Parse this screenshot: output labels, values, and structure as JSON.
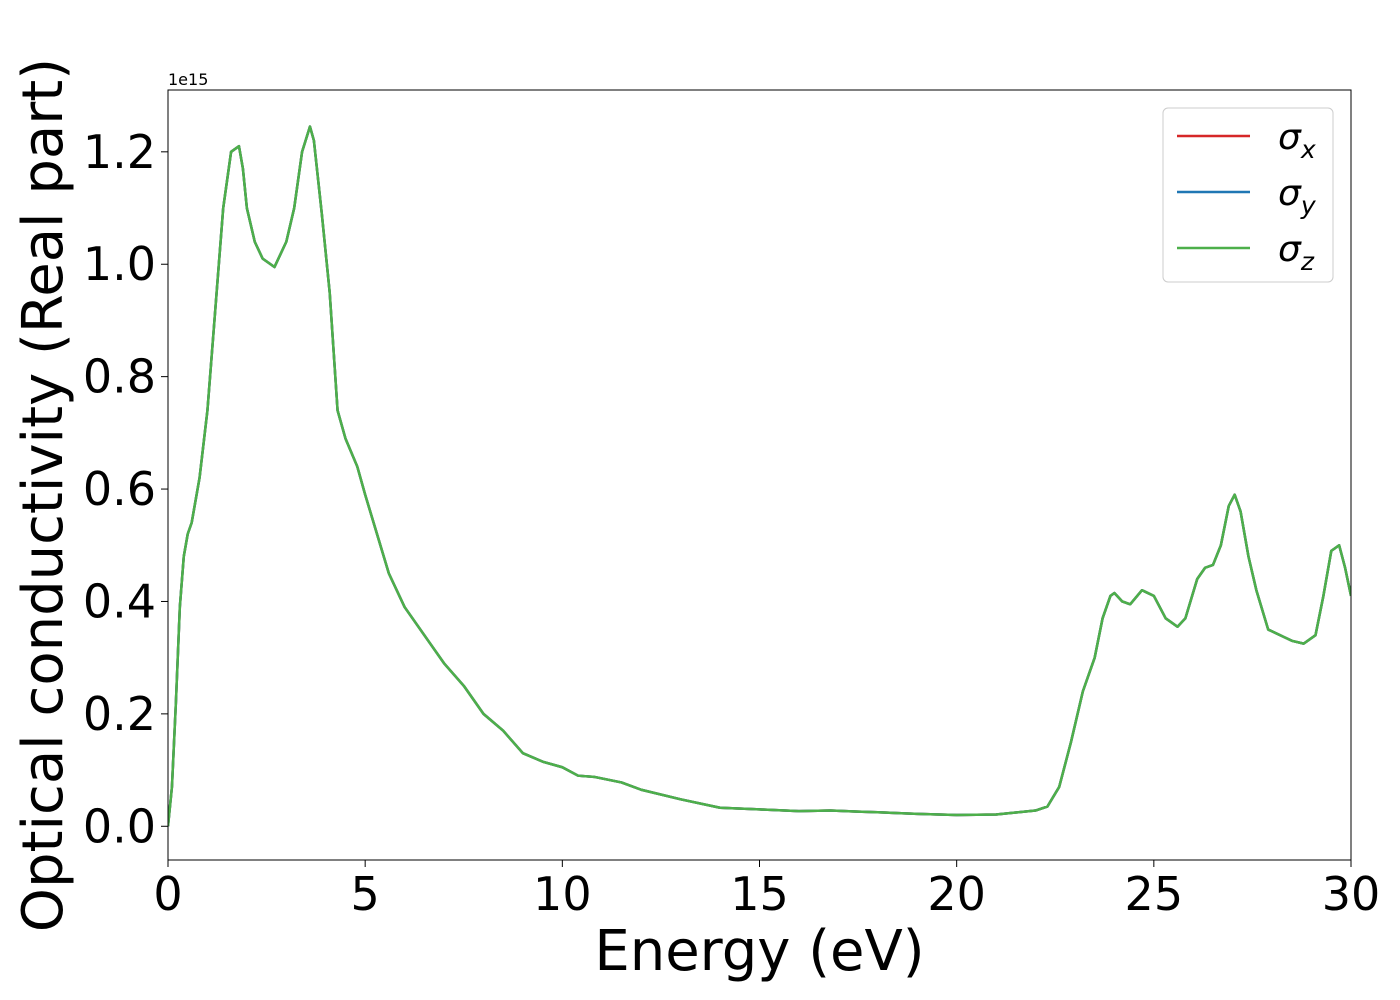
{
  "chart_data": {
    "type": "line",
    "xlabel": "Energy (eV)",
    "ylabel": "Optical conductivity (Real part)",
    "offset_text": "1e15",
    "xlim": [
      0,
      30
    ],
    "ylim": [
      -0.06,
      1.31
    ],
    "xticks": [
      0,
      5,
      10,
      15,
      20,
      25,
      30
    ],
    "xtick_labels": [
      "0",
      "5",
      "10",
      "15",
      "20",
      "25",
      "30"
    ],
    "yticks": [
      0.0,
      0.2,
      0.4,
      0.6,
      0.8,
      1.0,
      1.2
    ],
    "ytick_labels": [
      "0.0",
      "0.2",
      "0.4",
      "0.6",
      "0.8",
      "1.0",
      "1.2"
    ],
    "y_scale_note": "values in units of 1e15",
    "grid": false,
    "legend_position": "top-right",
    "x": [
      0,
      0.1,
      0.2,
      0.3,
      0.4,
      0.5,
      0.6,
      0.8,
      1.0,
      1.2,
      1.4,
      1.6,
      1.8,
      1.9,
      2.0,
      2.2,
      2.4,
      2.7,
      3.0,
      3.2,
      3.4,
      3.6,
      3.7,
      3.9,
      4.1,
      4.3,
      4.5,
      4.8,
      5.0,
      5.3,
      5.6,
      6.0,
      6.3,
      6.6,
      7.0,
      7.5,
      8.0,
      8.5,
      9.0,
      9.5,
      10.0,
      10.4,
      10.8,
      11.5,
      12.0,
      13.0,
      14.0,
      15.0,
      16.0,
      16.8,
      17.5,
      18.0,
      19.0,
      20.0,
      21.0,
      22.0,
      22.3,
      22.6,
      22.9,
      23.2,
      23.5,
      23.7,
      23.9,
      24.0,
      24.2,
      24.4,
      24.7,
      25.0,
      25.3,
      25.6,
      25.8,
      26.1,
      26.3,
      26.5,
      26.7,
      26.9,
      27.05,
      27.2,
      27.4,
      27.6,
      27.9,
      28.2,
      28.5,
      28.8,
      29.1,
      29.3,
      29.5,
      29.7,
      29.85,
      30.0
    ],
    "series": [
      {
        "name": "σx",
        "color": "#d62728",
        "values": [
          0.0,
          0.07,
          0.22,
          0.39,
          0.48,
          0.52,
          0.54,
          0.62,
          0.74,
          0.92,
          1.1,
          1.2,
          1.21,
          1.17,
          1.1,
          1.04,
          1.01,
          0.995,
          1.04,
          1.1,
          1.2,
          1.245,
          1.22,
          1.09,
          0.95,
          0.74,
          0.69,
          0.64,
          0.59,
          0.52,
          0.45,
          0.39,
          0.36,
          0.33,
          0.29,
          0.25,
          0.2,
          0.17,
          0.13,
          0.115,
          0.105,
          0.09,
          0.088,
          0.078,
          0.065,
          0.048,
          0.033,
          0.03,
          0.027,
          0.028,
          0.026,
          0.025,
          0.022,
          0.02,
          0.021,
          0.028,
          0.035,
          0.07,
          0.15,
          0.24,
          0.3,
          0.37,
          0.41,
          0.415,
          0.4,
          0.395,
          0.42,
          0.41,
          0.37,
          0.355,
          0.37,
          0.44,
          0.46,
          0.465,
          0.5,
          0.57,
          0.59,
          0.56,
          0.48,
          0.42,
          0.35,
          0.34,
          0.33,
          0.325,
          0.34,
          0.41,
          0.49,
          0.5,
          0.46,
          0.41
        ]
      },
      {
        "name": "σy",
        "color": "#1f77b4",
        "values": [
          0.0,
          0.07,
          0.22,
          0.39,
          0.48,
          0.52,
          0.54,
          0.62,
          0.74,
          0.92,
          1.1,
          1.2,
          1.21,
          1.17,
          1.1,
          1.04,
          1.01,
          0.995,
          1.04,
          1.1,
          1.2,
          1.245,
          1.22,
          1.09,
          0.95,
          0.74,
          0.69,
          0.64,
          0.59,
          0.52,
          0.45,
          0.39,
          0.36,
          0.33,
          0.29,
          0.25,
          0.2,
          0.17,
          0.13,
          0.115,
          0.105,
          0.09,
          0.088,
          0.078,
          0.065,
          0.048,
          0.033,
          0.03,
          0.027,
          0.028,
          0.026,
          0.025,
          0.022,
          0.02,
          0.021,
          0.028,
          0.035,
          0.07,
          0.15,
          0.24,
          0.3,
          0.37,
          0.41,
          0.415,
          0.4,
          0.395,
          0.42,
          0.41,
          0.37,
          0.355,
          0.37,
          0.44,
          0.46,
          0.465,
          0.5,
          0.57,
          0.59,
          0.56,
          0.48,
          0.42,
          0.35,
          0.34,
          0.33,
          0.325,
          0.34,
          0.41,
          0.49,
          0.5,
          0.46,
          0.41
        ]
      },
      {
        "name": "σz",
        "color": "#4daf4a",
        "values": [
          0.0,
          0.07,
          0.22,
          0.39,
          0.48,
          0.52,
          0.54,
          0.62,
          0.74,
          0.92,
          1.1,
          1.2,
          1.21,
          1.17,
          1.1,
          1.04,
          1.01,
          0.995,
          1.04,
          1.1,
          1.2,
          1.245,
          1.22,
          1.09,
          0.95,
          0.74,
          0.69,
          0.64,
          0.59,
          0.52,
          0.45,
          0.39,
          0.36,
          0.33,
          0.29,
          0.25,
          0.2,
          0.17,
          0.13,
          0.115,
          0.105,
          0.09,
          0.088,
          0.078,
          0.065,
          0.048,
          0.033,
          0.03,
          0.027,
          0.028,
          0.026,
          0.025,
          0.022,
          0.02,
          0.021,
          0.028,
          0.035,
          0.07,
          0.15,
          0.24,
          0.3,
          0.37,
          0.41,
          0.415,
          0.4,
          0.395,
          0.42,
          0.41,
          0.37,
          0.355,
          0.37,
          0.44,
          0.46,
          0.465,
          0.5,
          0.57,
          0.59,
          0.56,
          0.48,
          0.42,
          0.35,
          0.34,
          0.33,
          0.325,
          0.34,
          0.41,
          0.49,
          0.5,
          0.46,
          0.41
        ]
      }
    ],
    "legend": [
      {
        "symbol": "σ",
        "sub": "x"
      },
      {
        "symbol": "σ",
        "sub": "y"
      },
      {
        "symbol": "σ",
        "sub": "z"
      }
    ]
  }
}
